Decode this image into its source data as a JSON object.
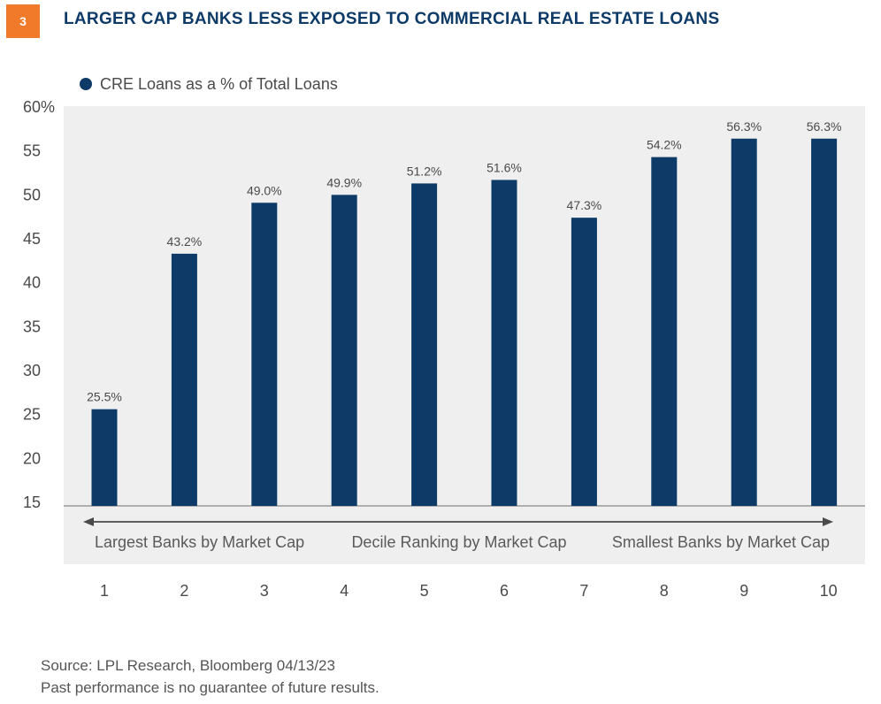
{
  "figure": {
    "number": "3",
    "title": "LARGER CAP BANKS LESS EXPOSED TO COMMERCIAL REAL ESTATE LOANS"
  },
  "colors": {
    "bar": "#0d3a66",
    "badge": "#f07a2a",
    "title": "#0d3a66",
    "plot_background": "#efefef",
    "arrow": "#4a4a4a"
  },
  "chart_data": {
    "type": "bar",
    "title": "",
    "xlabel": "",
    "ylabel": "",
    "categories": [
      "1",
      "2",
      "3",
      "4",
      "5",
      "6",
      "7",
      "8",
      "9",
      "10"
    ],
    "series": [
      {
        "name": "CRE Loans as a % of Total Loans",
        "values": [
          25.5,
          43.2,
          49.0,
          49.9,
          51.2,
          51.6,
          47.3,
          54.2,
          56.3,
          56.3
        ]
      }
    ],
    "data_labels": [
      "25.5%",
      "43.2%",
      "49.0%",
      "49.9%",
      "51.2%",
      "51.6%",
      "47.3%",
      "54.2%",
      "56.3%",
      "56.3%"
    ],
    "ylim": [
      15,
      60
    ],
    "yticks": [
      15,
      20,
      25,
      30,
      35,
      40,
      45,
      50,
      55,
      60
    ],
    "ytick_labels": [
      "15",
      "20",
      "25",
      "30",
      "35",
      "40",
      "45",
      "50",
      "55",
      "60%"
    ],
    "grid": false,
    "legend_position": "top-left",
    "annotations": {
      "left": "Largest Banks by Market Cap",
      "center": "Decile Ranking by Market Cap",
      "right": "Smallest Banks by Market Cap"
    }
  },
  "footer": {
    "source": "Source: LPL Research, Bloomberg  04/13/23",
    "disclaimer": "Past performance is no guarantee of future results."
  }
}
